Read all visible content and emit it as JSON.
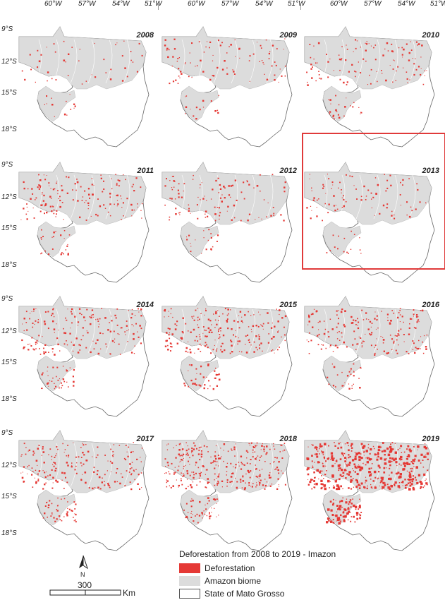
{
  "axes": {
    "longitudes": [
      "60°W",
      "57°W",
      "54°W",
      "51°W"
    ],
    "latitudes": [
      "9°S",
      "12°S",
      "15°S",
      "18°S"
    ]
  },
  "panels": [
    {
      "year": "2008",
      "density": 60
    },
    {
      "year": "2009",
      "density": 110
    },
    {
      "year": "2010",
      "density": 140
    },
    {
      "year": "2011",
      "density": 180
    },
    {
      "year": "2012",
      "density": 130
    },
    {
      "year": "2013",
      "density": 110,
      "highlighted": true
    },
    {
      "year": "2014",
      "density": 220
    },
    {
      "year": "2015",
      "density": 260
    },
    {
      "year": "2016",
      "density": 220
    },
    {
      "year": "2017",
      "density": 240
    },
    {
      "year": "2018",
      "density": 360
    },
    {
      "year": "2019",
      "density": 520
    }
  ],
  "legend": {
    "title": "Deforestation from 2008 to 2019 - Imazon",
    "items": [
      {
        "label": "Deforestation",
        "color": "#e53935"
      },
      {
        "label": "Amazon  biome",
        "color": "#dcdcdc"
      },
      {
        "label": "State of Mato Grosso",
        "color": "#ffffff"
      }
    ]
  },
  "north_arrow": {
    "label": "N"
  },
  "scale_bar": {
    "value": "300",
    "unit": "Km"
  },
  "colors": {
    "deforestation": "#e53935",
    "biome": "#dcdcdc",
    "highlight": "#e03a3a"
  }
}
